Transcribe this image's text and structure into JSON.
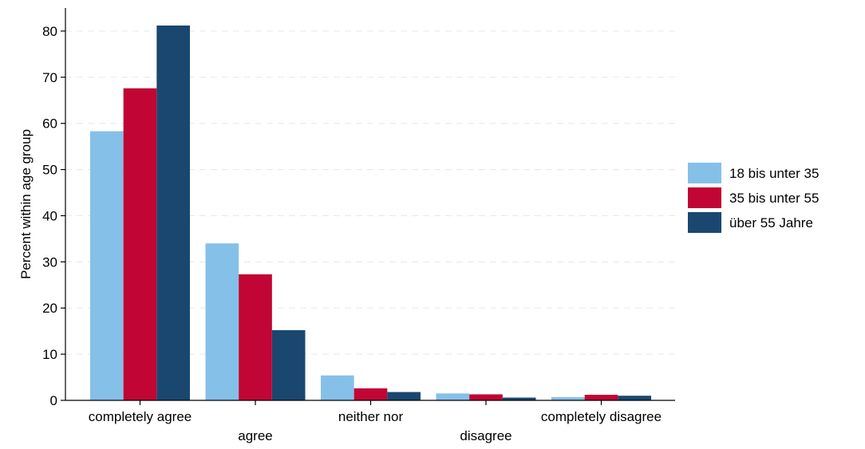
{
  "chart_data": {
    "type": "bar",
    "title": "",
    "xlabel": "",
    "ylabel": "Percent within age group",
    "ylim": [
      0,
      85
    ],
    "yticks": [
      0,
      10,
      20,
      30,
      40,
      50,
      60,
      70,
      80
    ],
    "grid": true,
    "legend_position": "right",
    "categories": [
      "completely agree",
      "agree",
      "neither nor",
      "disagree",
      "completely disagree"
    ],
    "series": [
      {
        "name": "18 bis unter 35",
        "color": "#85C0E9",
        "values": [
          58.3,
          34.0,
          5.4,
          1.5,
          0.7
        ]
      },
      {
        "name": "35 bis unter 55",
        "color": "#C10534",
        "values": [
          67.6,
          27.3,
          2.6,
          1.3,
          1.2
        ]
      },
      {
        "name": "über 55 Jahre",
        "color": "#1A476F",
        "values": [
          81.2,
          15.2,
          1.8,
          0.6,
          1.0
        ]
      }
    ]
  }
}
